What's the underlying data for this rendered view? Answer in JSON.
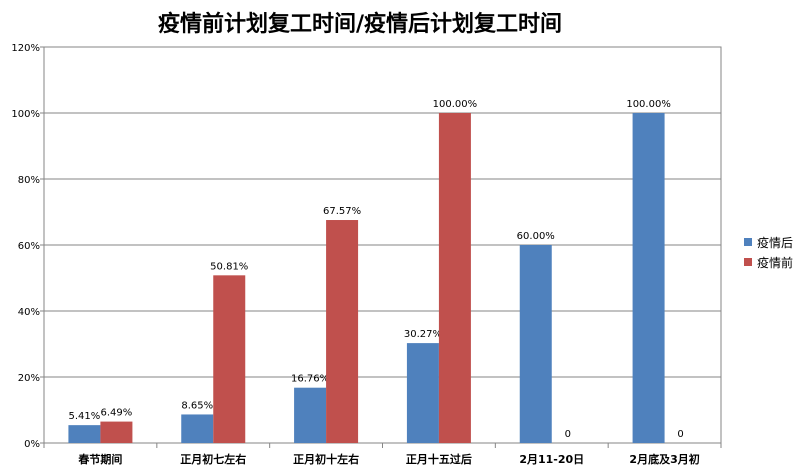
{
  "chart_data": {
    "type": "bar",
    "title": "疫情前计划复工时间/疫情后计划复工时间",
    "xlabel": "",
    "ylabel": "",
    "categories": [
      "春节期间",
      "正月初七左右",
      "正月初十左右",
      "正月十五过后",
      "2月11-20日",
      "2月底及3月初"
    ],
    "series": [
      {
        "name": "疫情后",
        "color": "#4F81BD",
        "values": [
          5.41,
          8.65,
          16.76,
          30.27,
          60.0,
          100.0
        ],
        "data_labels": [
          "5.41%",
          "8.65%",
          "16.76%",
          "30.27%",
          "60.00%",
          "100.00%"
        ]
      },
      {
        "name": "疫情前",
        "color": "#C0504D",
        "values": [
          6.49,
          50.81,
          67.57,
          100.0,
          0,
          0
        ],
        "data_labels": [
          "6.49%",
          "50.81%",
          "67.57%",
          "100.00%",
          "0",
          "0"
        ]
      }
    ],
    "ylim": [
      0,
      120
    ],
    "yticks": [
      "0%",
      "20%",
      "40%",
      "60%",
      "80%",
      "100%",
      "120%"
    ],
    "grid": true,
    "legend_position": "right"
  }
}
